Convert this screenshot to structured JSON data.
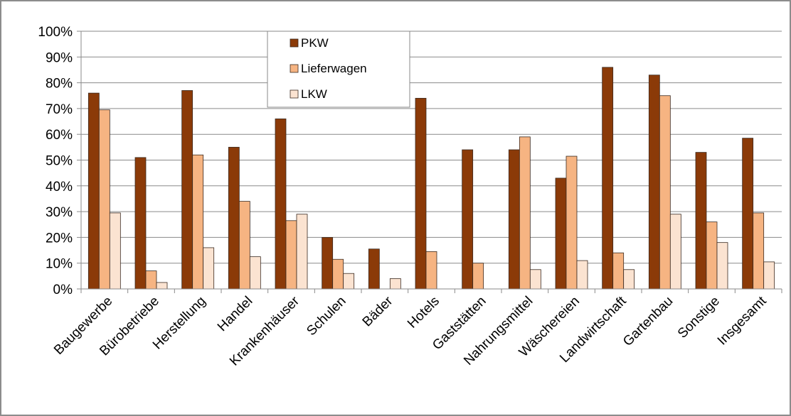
{
  "chart_data": {
    "type": "bar",
    "categories": [
      "Baugewerbe",
      "Bürobetriebe",
      "Herstellung",
      "Handel",
      "Krankenhäuser",
      "Schulen",
      "Bäder",
      "Hotels",
      "Gaststätten",
      "Nahrungsmittel",
      "Wäschereien",
      "Landwirtschaft",
      "Gartenbau",
      "Sonstige",
      "Insgesamt"
    ],
    "series": [
      {
        "name": "PKW",
        "color": "#8b3a08",
        "values": [
          76,
          51,
          77,
          55,
          66,
          20,
          15.5,
          74,
          54,
          54,
          43,
          86,
          83,
          53,
          58.5
        ]
      },
      {
        "name": "Lieferwagen",
        "color": "#f6b482",
        "values": [
          69.5,
          7,
          52,
          34,
          26.5,
          11.5,
          0,
          14.5,
          10,
          59,
          51.5,
          14,
          75,
          26,
          29.5
        ]
      },
      {
        "name": "LKW",
        "color": "#fbe3d1",
        "values": [
          29.5,
          2.5,
          16,
          12.5,
          29,
          6,
          4,
          0,
          0,
          7.5,
          11,
          7.5,
          29,
          18,
          10.5
        ]
      }
    ],
    "ylim": [
      0,
      100
    ],
    "yticks": [
      "0%",
      "10%",
      "20%",
      "30%",
      "40%",
      "50%",
      "60%",
      "70%",
      "80%",
      "90%",
      "100%"
    ],
    "grid": true,
    "legend_position": "top-left"
  }
}
